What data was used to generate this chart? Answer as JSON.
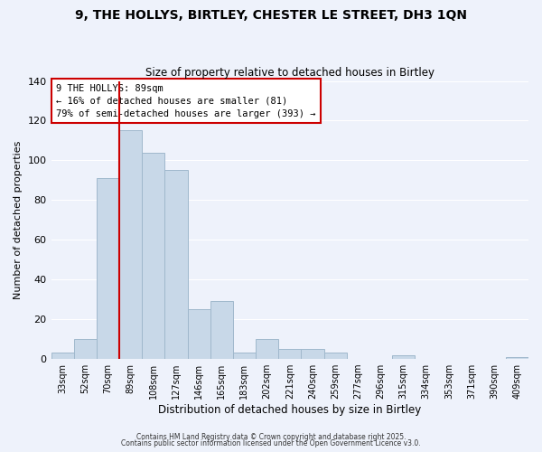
{
  "title_line1": "9, THE HOLLYS, BIRTLEY, CHESTER LE STREET, DH3 1QN",
  "title_line2": "Size of property relative to detached houses in Birtley",
  "xlabel": "Distribution of detached houses by size in Birtley",
  "ylabel": "Number of detached properties",
  "bin_labels": [
    "33sqm",
    "52sqm",
    "70sqm",
    "89sqm",
    "108sqm",
    "127sqm",
    "146sqm",
    "165sqm",
    "183sqm",
    "202sqm",
    "221sqm",
    "240sqm",
    "259sqm",
    "277sqm",
    "296sqm",
    "315sqm",
    "334sqm",
    "353sqm",
    "371sqm",
    "390sqm",
    "409sqm"
  ],
  "bar_heights": [
    3,
    10,
    91,
    115,
    104,
    95,
    25,
    29,
    3,
    10,
    5,
    5,
    3,
    0,
    0,
    2,
    0,
    0,
    0,
    0,
    1
  ],
  "bar_color": "#c8d8e8",
  "bar_edge_color": "#a0b8cc",
  "vline_color": "#cc0000",
  "ylim": [
    0,
    140
  ],
  "yticks": [
    0,
    20,
    40,
    60,
    80,
    100,
    120,
    140
  ],
  "annotation_title": "9 THE HOLLYS: 89sqm",
  "annotation_line1": "← 16% of detached houses are smaller (81)",
  "annotation_line2": "79% of semi-detached houses are larger (393) →",
  "annotation_box_color": "#ffffff",
  "annotation_box_edge": "#cc0000",
  "footer_line1": "Contains HM Land Registry data © Crown copyright and database right 2025.",
  "footer_line2": "Contains public sector information licensed under the Open Government Licence v3.0.",
  "background_color": "#eef2fb"
}
